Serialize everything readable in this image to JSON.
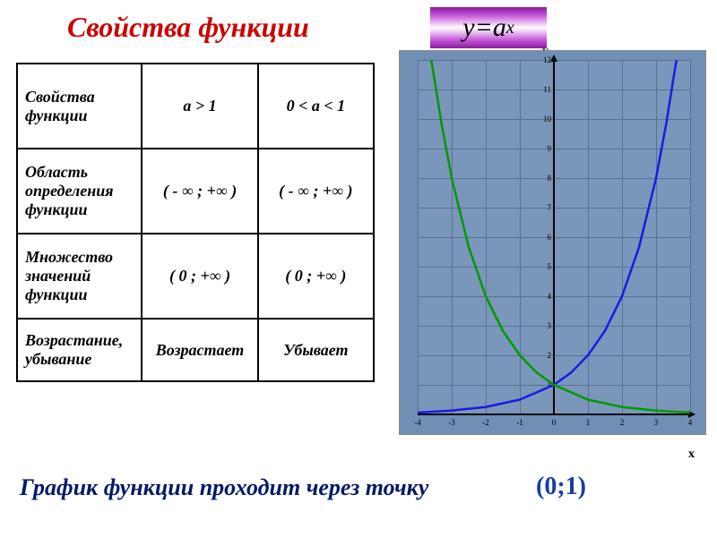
{
  "title": "Свойства функции",
  "formula": {
    "lhs": "y",
    "eq": "=",
    "base": "a",
    "exp": "x"
  },
  "table": {
    "rows": [
      {
        "label": "Свойства\nфункции",
        "col1": "a  >  1",
        "col2": "0  <  a  <  1"
      },
      {
        "label": "Область\nопределения\nфункции",
        "col1": "( -  ∞ ; +∞  )",
        "col2": "( -  ∞ ; +∞  )"
      },
      {
        "label": "Множество\nзначений\nфункции",
        "col1": "( 0  ;  +∞  )",
        "col2": "( 0  ;  +∞ )"
      },
      {
        "label": "Возрастание,\nубывание",
        "col1": "Возрастает",
        "col2": "Убывает"
      }
    ]
  },
  "chart": {
    "background_color": "#6f8fb5",
    "plot_bg_color": "#7a97bb",
    "grid_color": "#5a7090",
    "axis_color": "#000000",
    "xlim": [
      -4,
      4
    ],
    "ylim": [
      0,
      12
    ],
    "xtick_step": 1,
    "ytick_step": 1,
    "xticks": [
      -4,
      -3,
      -2,
      -1,
      0,
      1,
      2,
      3,
      4
    ],
    "yticks": [
      0,
      1,
      2,
      3,
      4,
      5,
      6,
      7,
      8,
      9,
      10,
      11,
      12
    ],
    "y_label": "y",
    "x_label": "x",
    "curves": [
      {
        "name": "growing",
        "color": "#1a1ae6",
        "width": 2.5,
        "points": [
          [
            -4,
            0.06
          ],
          [
            -3,
            0.13
          ],
          [
            -2,
            0.25
          ],
          [
            -1,
            0.5
          ],
          [
            0,
            1
          ],
          [
            0.5,
            1.41
          ],
          [
            1,
            2
          ],
          [
            1.5,
            2.83
          ],
          [
            2,
            4
          ],
          [
            2.5,
            5.66
          ],
          [
            3,
            8
          ],
          [
            3.3,
            9.85
          ],
          [
            3.5,
            11.3
          ],
          [
            3.6,
            12
          ]
        ]
      },
      {
        "name": "decaying",
        "color": "#009900",
        "width": 2.5,
        "points": [
          [
            -3.6,
            12
          ],
          [
            -3.5,
            11.3
          ],
          [
            -3.3,
            9.85
          ],
          [
            -3,
            8
          ],
          [
            -2.5,
            5.66
          ],
          [
            -2,
            4
          ],
          [
            -1.5,
            2.83
          ],
          [
            -1,
            2
          ],
          [
            -0.5,
            1.41
          ],
          [
            0,
            1
          ],
          [
            1,
            0.5
          ],
          [
            2,
            0.25
          ],
          [
            3,
            0.13
          ],
          [
            4,
            0.06
          ]
        ]
      }
    ]
  },
  "footer_text": "График функции проходит через точку",
  "footer_point": "(0;1)"
}
